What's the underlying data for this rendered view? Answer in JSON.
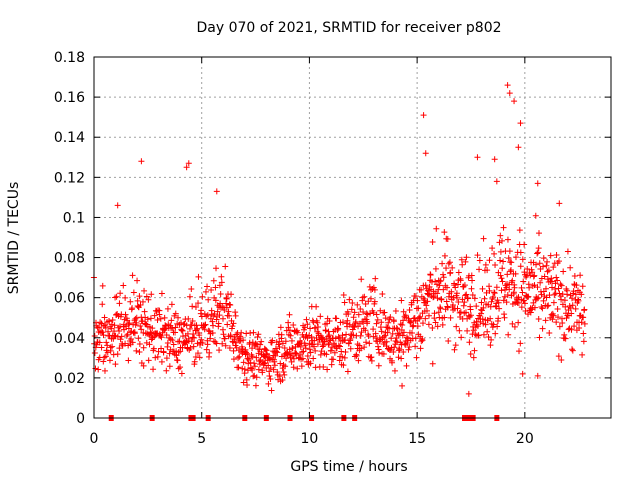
{
  "chart_data": {
    "type": "scatter",
    "title": "Day 070 of 2021, SRMTID for receiver p802",
    "xlabel": "GPS time / hours",
    "ylabel": "SRMTID / TECUs",
    "xlim": [
      0,
      24
    ],
    "ylim": [
      0,
      0.18
    ],
    "xticks": [
      0,
      5,
      10,
      15,
      20
    ],
    "xtick_labels": [
      "0",
      "5",
      "10",
      "15",
      "20"
    ],
    "yticks": [
      0,
      0.02,
      0.04,
      0.06,
      0.08,
      0.1,
      0.12,
      0.14,
      0.16,
      0.18
    ],
    "ytick_labels": [
      "0",
      "0.02",
      "0.04",
      "0.06",
      "0.08",
      "0.1",
      "0.12",
      "0.14",
      "0.16",
      "0.18"
    ],
    "grid": true,
    "marker": "+",
    "color": "#ff0000",
    "trend": [
      {
        "x": 0.0,
        "y": 0.038
      },
      {
        "x": 1.0,
        "y": 0.045
      },
      {
        "x": 2.0,
        "y": 0.048
      },
      {
        "x": 3.0,
        "y": 0.042
      },
      {
        "x": 4.0,
        "y": 0.038
      },
      {
        "x": 5.0,
        "y": 0.045
      },
      {
        "x": 6.0,
        "y": 0.055
      },
      {
        "x": 7.0,
        "y": 0.032
      },
      {
        "x": 8.0,
        "y": 0.028
      },
      {
        "x": 9.0,
        "y": 0.035
      },
      {
        "x": 10.0,
        "y": 0.04
      },
      {
        "x": 11.0,
        "y": 0.036
      },
      {
        "x": 12.0,
        "y": 0.045
      },
      {
        "x": 13.0,
        "y": 0.048
      },
      {
        "x": 14.0,
        "y": 0.038
      },
      {
        "x": 15.0,
        "y": 0.05
      },
      {
        "x": 16.0,
        "y": 0.065
      },
      {
        "x": 17.0,
        "y": 0.06
      },
      {
        "x": 18.0,
        "y": 0.055
      },
      {
        "x": 19.0,
        "y": 0.07
      },
      {
        "x": 20.0,
        "y": 0.065
      },
      {
        "x": 21.0,
        "y": 0.06
      },
      {
        "x": 22.0,
        "y": 0.058
      },
      {
        "x": 22.8,
        "y": 0.05
      }
    ],
    "highlights": [
      {
        "x": 2.2,
        "y": 0.128
      },
      {
        "x": 4.3,
        "y": 0.125
      },
      {
        "x": 4.4,
        "y": 0.127
      },
      {
        "x": 1.1,
        "y": 0.106
      },
      {
        "x": 5.7,
        "y": 0.113
      },
      {
        "x": 15.3,
        "y": 0.151
      },
      {
        "x": 15.4,
        "y": 0.132
      },
      {
        "x": 17.8,
        "y": 0.13
      },
      {
        "x": 18.6,
        "y": 0.129
      },
      {
        "x": 19.2,
        "y": 0.166
      },
      {
        "x": 19.3,
        "y": 0.162
      },
      {
        "x": 19.5,
        "y": 0.158
      },
      {
        "x": 19.8,
        "y": 0.147
      },
      {
        "x": 19.7,
        "y": 0.135
      },
      {
        "x": 20.6,
        "y": 0.117
      },
      {
        "x": 21.6,
        "y": 0.107
      },
      {
        "x": 18.7,
        "y": 0.118
      },
      {
        "x": 17.4,
        "y": 0.012
      },
      {
        "x": 19.9,
        "y": 0.022
      },
      {
        "x": 20.6,
        "y": 0.021
      },
      {
        "x": 14.3,
        "y": 0.016
      }
    ],
    "zero_markers_x": [
      0.8,
      2.7,
      4.5,
      4.6,
      5.3,
      7.0,
      8.0,
      9.1,
      10.1,
      11.6,
      12.1,
      17.2,
      17.4,
      17.5,
      17.6,
      18.7
    ],
    "point_count": 1400
  }
}
